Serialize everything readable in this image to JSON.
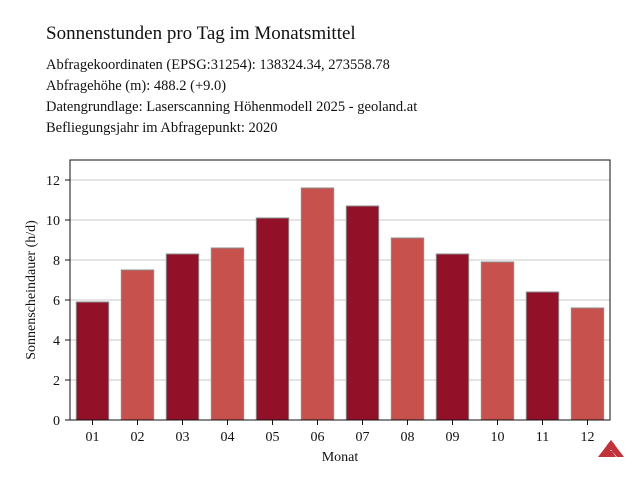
{
  "header": {
    "title": "Sonnenstunden pro Tag im Monatsmittel",
    "info_lines": [
      "Abfragekoordinaten (EPSG:31254): 138324.34, 273558.78",
      "Abfragehöhe (m): 488.2 (+9.0)",
      "Datengrundlage: Laserscanning Höhenmodell 2025 - geoland.at",
      "Befliegungsjahr im Abfragepunkt: 2020"
    ]
  },
  "chart_data": {
    "type": "bar",
    "title": "Sonnenstunden pro Tag im Monatsmittel",
    "xlabel": "Monat",
    "ylabel": "Sonnenscheindauer (h/d)",
    "categories": [
      "01",
      "02",
      "03",
      "04",
      "05",
      "06",
      "07",
      "08",
      "09",
      "10",
      "11",
      "12"
    ],
    "values": [
      5.9,
      7.5,
      8.3,
      8.6,
      10.1,
      11.6,
      10.7,
      9.1,
      8.3,
      7.9,
      6.4,
      5.6
    ],
    "ylim": [
      0,
      13
    ],
    "yticks": [
      0,
      2,
      4,
      6,
      8,
      10,
      12
    ],
    "grid": true,
    "bar_colors": [
      "#931029",
      "#c7514d"
    ]
  },
  "logo": {
    "icon": "logo-icon",
    "color": "#c0333a"
  }
}
